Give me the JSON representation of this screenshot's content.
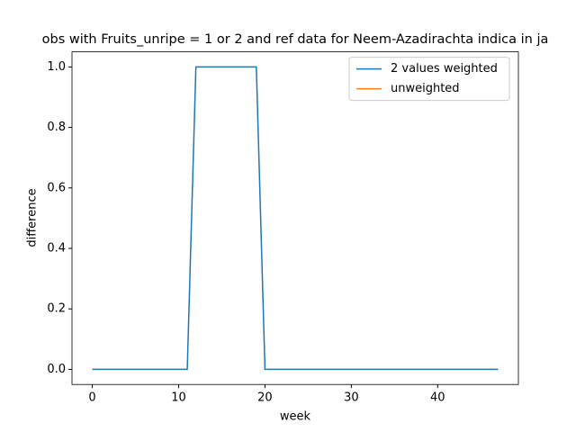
{
  "chart_data": {
    "type": "line",
    "title": "obs with Fruits_unripe = 1 or 2 and ref data for Neem-Azadirachta indica in ja",
    "xlabel": "week",
    "ylabel": "difference",
    "x": [
      0,
      1,
      2,
      3,
      4,
      5,
      6,
      7,
      8,
      9,
      10,
      11,
      12,
      13,
      14,
      15,
      16,
      17,
      18,
      19,
      20,
      21,
      22,
      23,
      24,
      25,
      26,
      27,
      28,
      29,
      30,
      31,
      32,
      33,
      34,
      35,
      36,
      37,
      38,
      39,
      40,
      41,
      42,
      43,
      44,
      45,
      46,
      47
    ],
    "series": [
      {
        "name": "2 values weighted",
        "color": "#1f77b4",
        "values": [
          0,
          0,
          0,
          0,
          0,
          0,
          0,
          0,
          0,
          0,
          0,
          0,
          1,
          1,
          1,
          1,
          1,
          1,
          1,
          1,
          0,
          0,
          0,
          0,
          0,
          0,
          0,
          0,
          0,
          0,
          0,
          0,
          0,
          0,
          0,
          0,
          0,
          0,
          0,
          0,
          0,
          0,
          0,
          0,
          0,
          0,
          0,
          0
        ]
      },
      {
        "name": "unweighted",
        "color": "#ff7f0e",
        "values": [
          null,
          null,
          null,
          null,
          null,
          null,
          null,
          null,
          null,
          null,
          null,
          null,
          null,
          null,
          null,
          null,
          null,
          null,
          null,
          null,
          null,
          null,
          null,
          null,
          null,
          null,
          null,
          null,
          null,
          null,
          null,
          null,
          null,
          null,
          null,
          null,
          null,
          null,
          null,
          null,
          null,
          null,
          null,
          null,
          null,
          null,
          null,
          null
        ]
      }
    ],
    "xlim": [
      -2.35,
      49.35
    ],
    "xticks": [
      0,
      10,
      20,
      30,
      40
    ],
    "ylim": [
      -0.05,
      1.05
    ],
    "yticks": [
      {
        "value": 0,
        "label": "0.0"
      },
      {
        "value": 0.2,
        "label": "0.2"
      },
      {
        "value": 0.4,
        "label": "0.4"
      },
      {
        "value": 0.6,
        "label": "0.6"
      },
      {
        "value": 0.8,
        "label": "0.8"
      },
      {
        "value": 1,
        "label": "1.0"
      }
    ],
    "legend": "upper right",
    "grid": false
  }
}
